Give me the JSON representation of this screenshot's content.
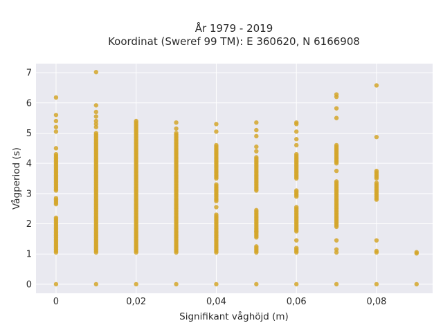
{
  "chart_data": {
    "type": "scatter",
    "title_line1": "År 1979 - 2019",
    "title_line2": "Koordinat (Sweref 99 TM): E 360620, N 6166908",
    "xlabel": "Signifikant våghöjd (m)",
    "ylabel": "Vågperiod (s)",
    "xlim": [
      -0.005,
      0.094
    ],
    "ylim": [
      -0.3,
      7.3
    ],
    "x_ticks": [
      0,
      0.02,
      0.04,
      0.06,
      0.08
    ],
    "x_tick_labels": [
      "0",
      "0,02",
      "0,04",
      "0,06",
      "0,08"
    ],
    "y_ticks": [
      0,
      1,
      2,
      3,
      4,
      5,
      6,
      7
    ],
    "y_tick_labels": [
      "0",
      "1",
      "2",
      "3",
      "4",
      "5",
      "6",
      "7"
    ],
    "grid": true,
    "colors": {
      "marker": "#d4a62a",
      "plot_bg": "#e9e9f0",
      "grid": "#ffffff"
    },
    "points": [
      {
        "x": 0.0,
        "ranges": [
          [
            1.05,
            2.2
          ],
          [
            2.65,
            2.85
          ],
          [
            3.1,
            4.3
          ]
        ],
        "extra": [
          0,
          4.5,
          5.05,
          5.2,
          5.4,
          5.6,
          6.18
        ]
      },
      {
        "x": 0.01,
        "ranges": [
          [
            1.05,
            5.0
          ]
        ],
        "extra": [
          0,
          5.2,
          5.3,
          5.4,
          5.55,
          5.7,
          5.92,
          7.02
        ]
      },
      {
        "x": 0.02,
        "ranges": [
          [
            1.05,
            5.42
          ]
        ],
        "extra": [
          0
        ]
      },
      {
        "x": 0.03,
        "ranges": [
          [
            1.05,
            5.0
          ]
        ],
        "extra": [
          0,
          5.15,
          5.35
        ]
      },
      {
        "x": 0.04,
        "ranges": [
          [
            1.05,
            2.3
          ],
          [
            2.75,
            3.3
          ],
          [
            3.5,
            4.6
          ]
        ],
        "extra": [
          0,
          2.55,
          5.05,
          5.3
        ]
      },
      {
        "x": 0.05,
        "ranges": [
          [
            1.05,
            1.25
          ],
          [
            1.55,
            2.45
          ],
          [
            3.1,
            4.2
          ]
        ],
        "extra": [
          0,
          1.75,
          4.4,
          4.55,
          4.9,
          5.1,
          5.35
        ]
      },
      {
        "x": 0.06,
        "ranges": [
          [
            1.05,
            1.2
          ],
          [
            1.75,
            2.55
          ],
          [
            2.9,
            3.1
          ],
          [
            3.5,
            4.3
          ]
        ],
        "extra": [
          0,
          1.45,
          4.6,
          4.8,
          5.05,
          5.3,
          5.35
        ]
      },
      {
        "x": 0.07,
        "ranges": [
          [
            1.9,
            3.4
          ],
          [
            4.0,
            4.6
          ]
        ],
        "extra": [
          0,
          1.05,
          1.15,
          1.45,
          3.75,
          5.5,
          5.82,
          6.2,
          6.28
        ]
      },
      {
        "x": 0.08,
        "ranges": [
          [
            2.8,
            3.35
          ],
          [
            3.5,
            3.75
          ]
        ],
        "extra": [
          0,
          1.05,
          1.1,
          1.45,
          4.87,
          6.58
        ]
      },
      {
        "x": 0.09,
        "ranges": [],
        "extra": [
          0,
          1.02,
          1.06
        ]
      }
    ]
  }
}
